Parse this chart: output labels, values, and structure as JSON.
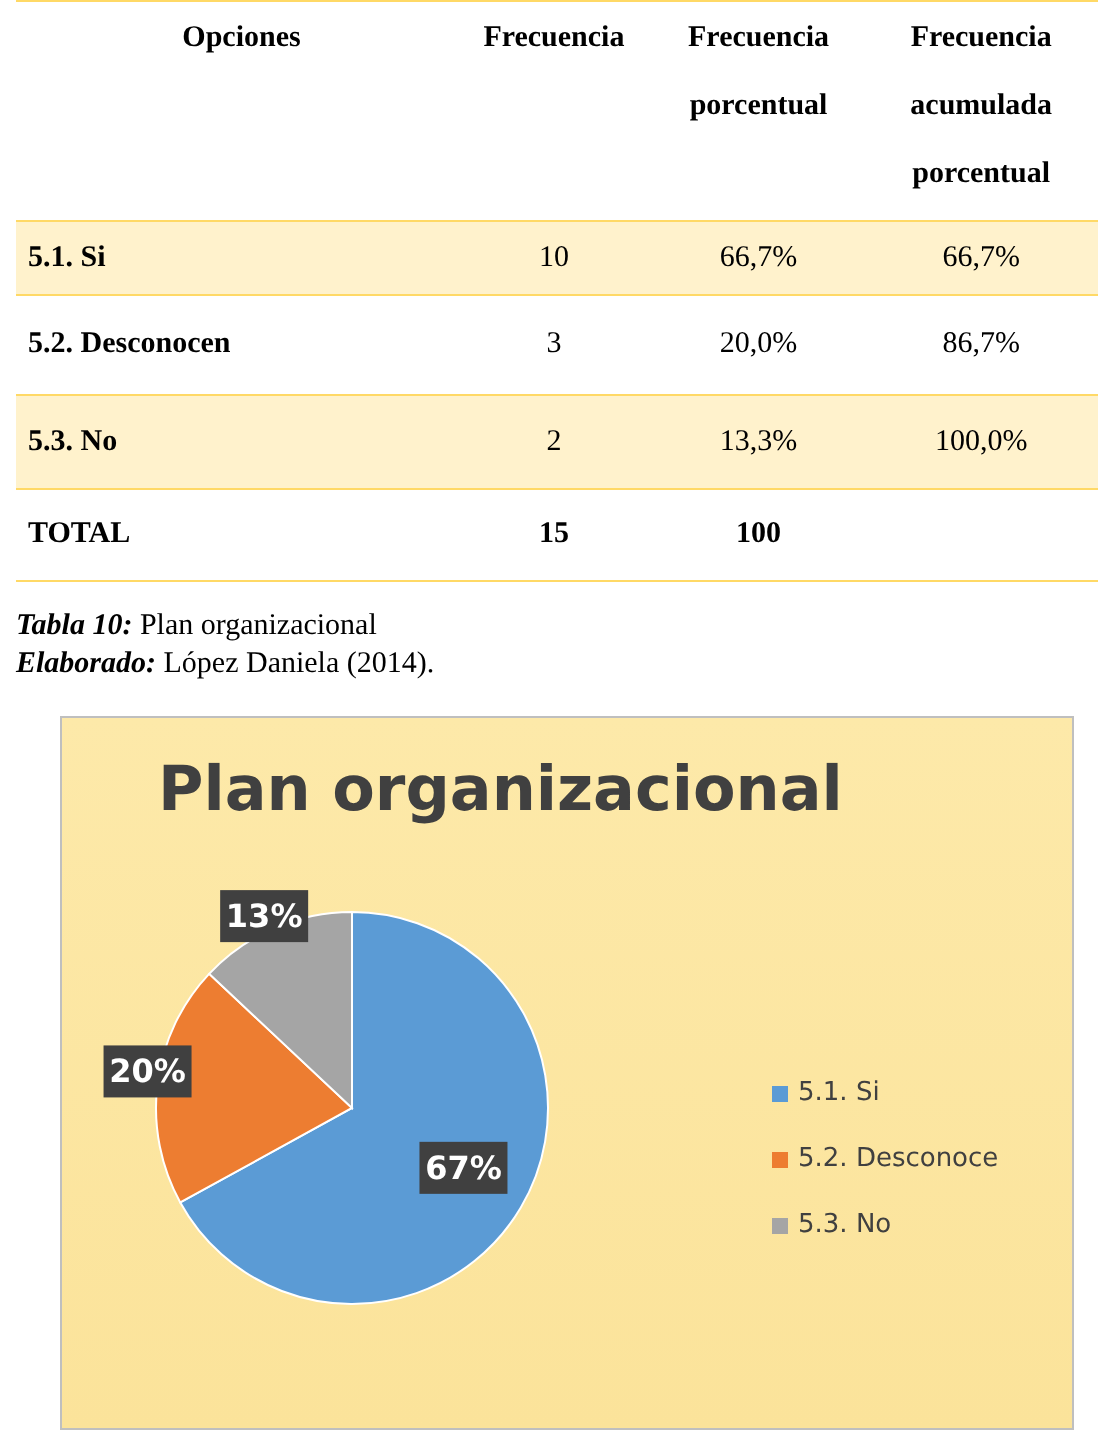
{
  "chart_data": [
    {
      "type": "other",
      "annotations": [
        "Opciones",
        "Frecuencia",
        "Frecuencia porcentual",
        "Frecuencia acumulada porcentual",
        "5.1. Si",
        "10",
        "66,7%",
        "66,7%",
        "5.2.  Desconocen",
        "3",
        "20,0%",
        "86,7%",
        "5.3.  No",
        "2",
        "13,3%",
        "100,0%",
        "TOTAL",
        "15",
        "100",
        "Tabla 10: Plan organizacional",
        "Elaborado: López Daniela (2014)."
      ]
    },
    {
      "type": "pie",
      "title": "Plan organizacional",
      "categories": [
        "5.1. Si",
        "5.2. Desconoce",
        "5.3. No"
      ],
      "values": [
        67,
        20,
        13
      ],
      "colors": [
        "#5b9bd5",
        "#ed7d31",
        "#a5a5a5"
      ],
      "value_labels": [
        "67%",
        "20%",
        "13%"
      ],
      "legend": "right"
    }
  ]
}
